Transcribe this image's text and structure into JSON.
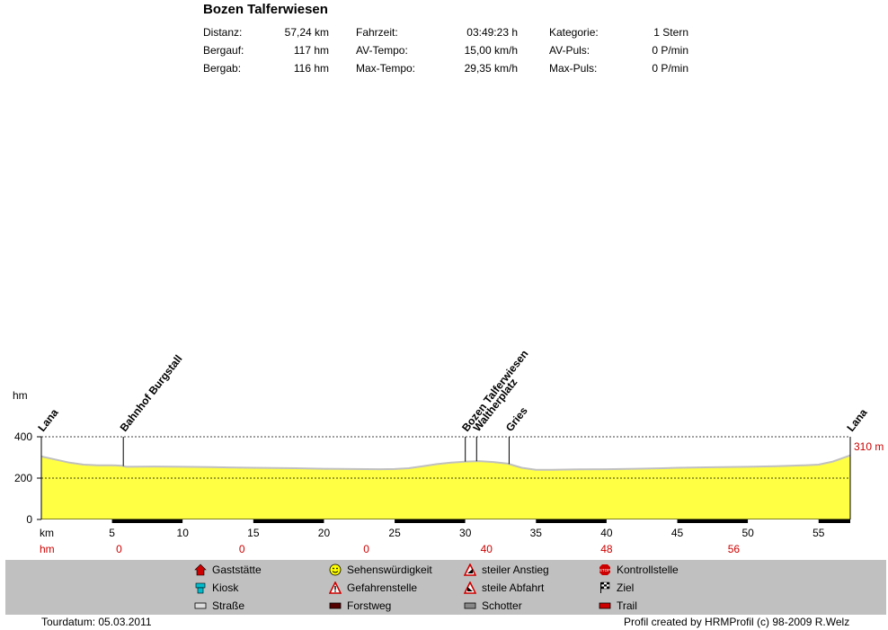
{
  "header": {
    "title": "Bozen Talferwiesen"
  },
  "stats": [
    {
      "label": "Distanz:",
      "value": "57,24 km"
    },
    {
      "label": "Bergauf:",
      "value": "117 hm"
    },
    {
      "label": "Bergab:",
      "value": "116 hm"
    },
    {
      "label": "Fahrzeit:",
      "value": "03:49:23 h"
    },
    {
      "label": "AV-Tempo:",
      "value": "15,00 km/h"
    },
    {
      "label": "Max-Tempo:",
      "value": "29,35 km/h"
    },
    {
      "label": "Kategorie:",
      "value": "1 Stern"
    },
    {
      "label": "AV-Puls:",
      "value": "0 P/min"
    },
    {
      "label": "Max-Puls:",
      "value": "0 P/min"
    }
  ],
  "chart_data": {
    "type": "area",
    "title": "Bozen Talferwiesen",
    "ylabel": "hm",
    "xlabel": "km",
    "ylim": [
      0,
      400
    ],
    "xlim": [
      0,
      57.24
    ],
    "y_ticks": [
      "0",
      "200",
      "400"
    ],
    "x_ticks": [
      "5",
      "10",
      "15",
      "20",
      "25",
      "30",
      "35",
      "40",
      "45",
      "50",
      "55"
    ],
    "end_elevation_label": "310 m",
    "fill_color": "#ffff44",
    "line_color": "#c0c0c0",
    "profile": {
      "x": [
        0,
        1,
        2,
        3,
        4,
        5,
        5.7,
        6,
        8,
        10,
        12,
        15,
        18,
        20,
        22,
        24,
        25,
        26,
        27,
        28,
        29,
        30,
        31,
        32,
        33,
        34,
        35,
        36,
        38,
        40,
        42,
        44,
        45,
        47,
        50,
        52,
        54,
        55,
        56,
        57.24
      ],
      "y": [
        305,
        290,
        275,
        265,
        262,
        262,
        260,
        255,
        256,
        255,
        253,
        250,
        248,
        245,
        244,
        243,
        244,
        248,
        258,
        268,
        275,
        280,
        282,
        278,
        270,
        250,
        240,
        240,
        242,
        243,
        245,
        248,
        250,
        252,
        255,
        258,
        262,
        265,
        280,
        310
      ]
    },
    "waypoints": [
      {
        "name": "Lana",
        "km": 0
      },
      {
        "name": "Bahnhof Burgstall",
        "km": 5.8
      },
      {
        "name": "Bozen Talferwiesen",
        "km": 30.0
      },
      {
        "name": "Waltherplatz",
        "km": 30.8
      },
      {
        "name": "Gries",
        "km": 33.1
      },
      {
        "name": "Lana",
        "km": 57.24
      }
    ],
    "surface_segments": [
      {
        "type": "Straße",
        "from": 0,
        "to": 5
      },
      {
        "type": "Forstweg",
        "from": 5,
        "to": 10
      },
      {
        "type": "Straße",
        "from": 10,
        "to": 15
      },
      {
        "type": "Forstweg",
        "from": 15,
        "to": 20
      },
      {
        "type": "Straße",
        "from": 20,
        "to": 25
      },
      {
        "type": "Forstweg",
        "from": 25,
        "to": 30
      },
      {
        "type": "Straße",
        "from": 30,
        "to": 35
      },
      {
        "type": "Forstweg",
        "from": 35,
        "to": 40
      },
      {
        "type": "Straße",
        "from": 40,
        "to": 45
      },
      {
        "type": "Forstweg",
        "from": 45,
        "to": 50
      },
      {
        "type": "Straße",
        "from": 50,
        "to": 55
      },
      {
        "type": "Forstweg",
        "from": 55,
        "to": 57.24
      }
    ],
    "hm_row": {
      "label": "hm",
      "values": [
        {
          "km": 5.5,
          "value": "0"
        },
        {
          "km": 14.2,
          "value": "0"
        },
        {
          "km": 23.0,
          "value": "0"
        },
        {
          "km": 31.5,
          "value": "40"
        },
        {
          "km": 40.0,
          "value": "48"
        },
        {
          "km": 49.0,
          "value": "56"
        }
      ]
    }
  },
  "legend": [
    {
      "icon": "house-icon",
      "label": "Gaststätte",
      "color": "#cc0000"
    },
    {
      "icon": "smiley-icon",
      "label": "Sehenswürdigkeit",
      "color": "#ffff00"
    },
    {
      "icon": "steep-climb-icon",
      "label": "steiler Anstieg",
      "color": "#cc0000"
    },
    {
      "icon": "stop-sign-icon",
      "label": "Kontrollstelle",
      "color": "#cc0000"
    },
    {
      "icon": "kiosk-icon",
      "label": "Kiosk",
      "color": "#00bbcc"
    },
    {
      "icon": "warning-icon",
      "label": "Gefahrenstelle",
      "color": "#cc0000"
    },
    {
      "icon": "steep-descent-icon",
      "label": "steile Abfahrt",
      "color": "#cc0000"
    },
    {
      "icon": "checkered-flag-icon",
      "label": "Ziel",
      "color": "#000000"
    },
    {
      "icon": "road-swatch-icon",
      "label": "Straße",
      "color": "#dddddd"
    },
    {
      "icon": "forest-road-swatch-icon",
      "label": "Forstweg",
      "color": "#550000"
    },
    {
      "icon": "gravel-swatch-icon",
      "label": "Schotter",
      "color": "#888888"
    },
    {
      "icon": "trail-swatch-icon",
      "label": "Trail",
      "color": "#cc0000"
    }
  ],
  "footer": {
    "tour_date": "Tourdatum: 05.03.2011",
    "credits": "Profil created by HRMProfil (c) 98-2009 R.Welz"
  }
}
